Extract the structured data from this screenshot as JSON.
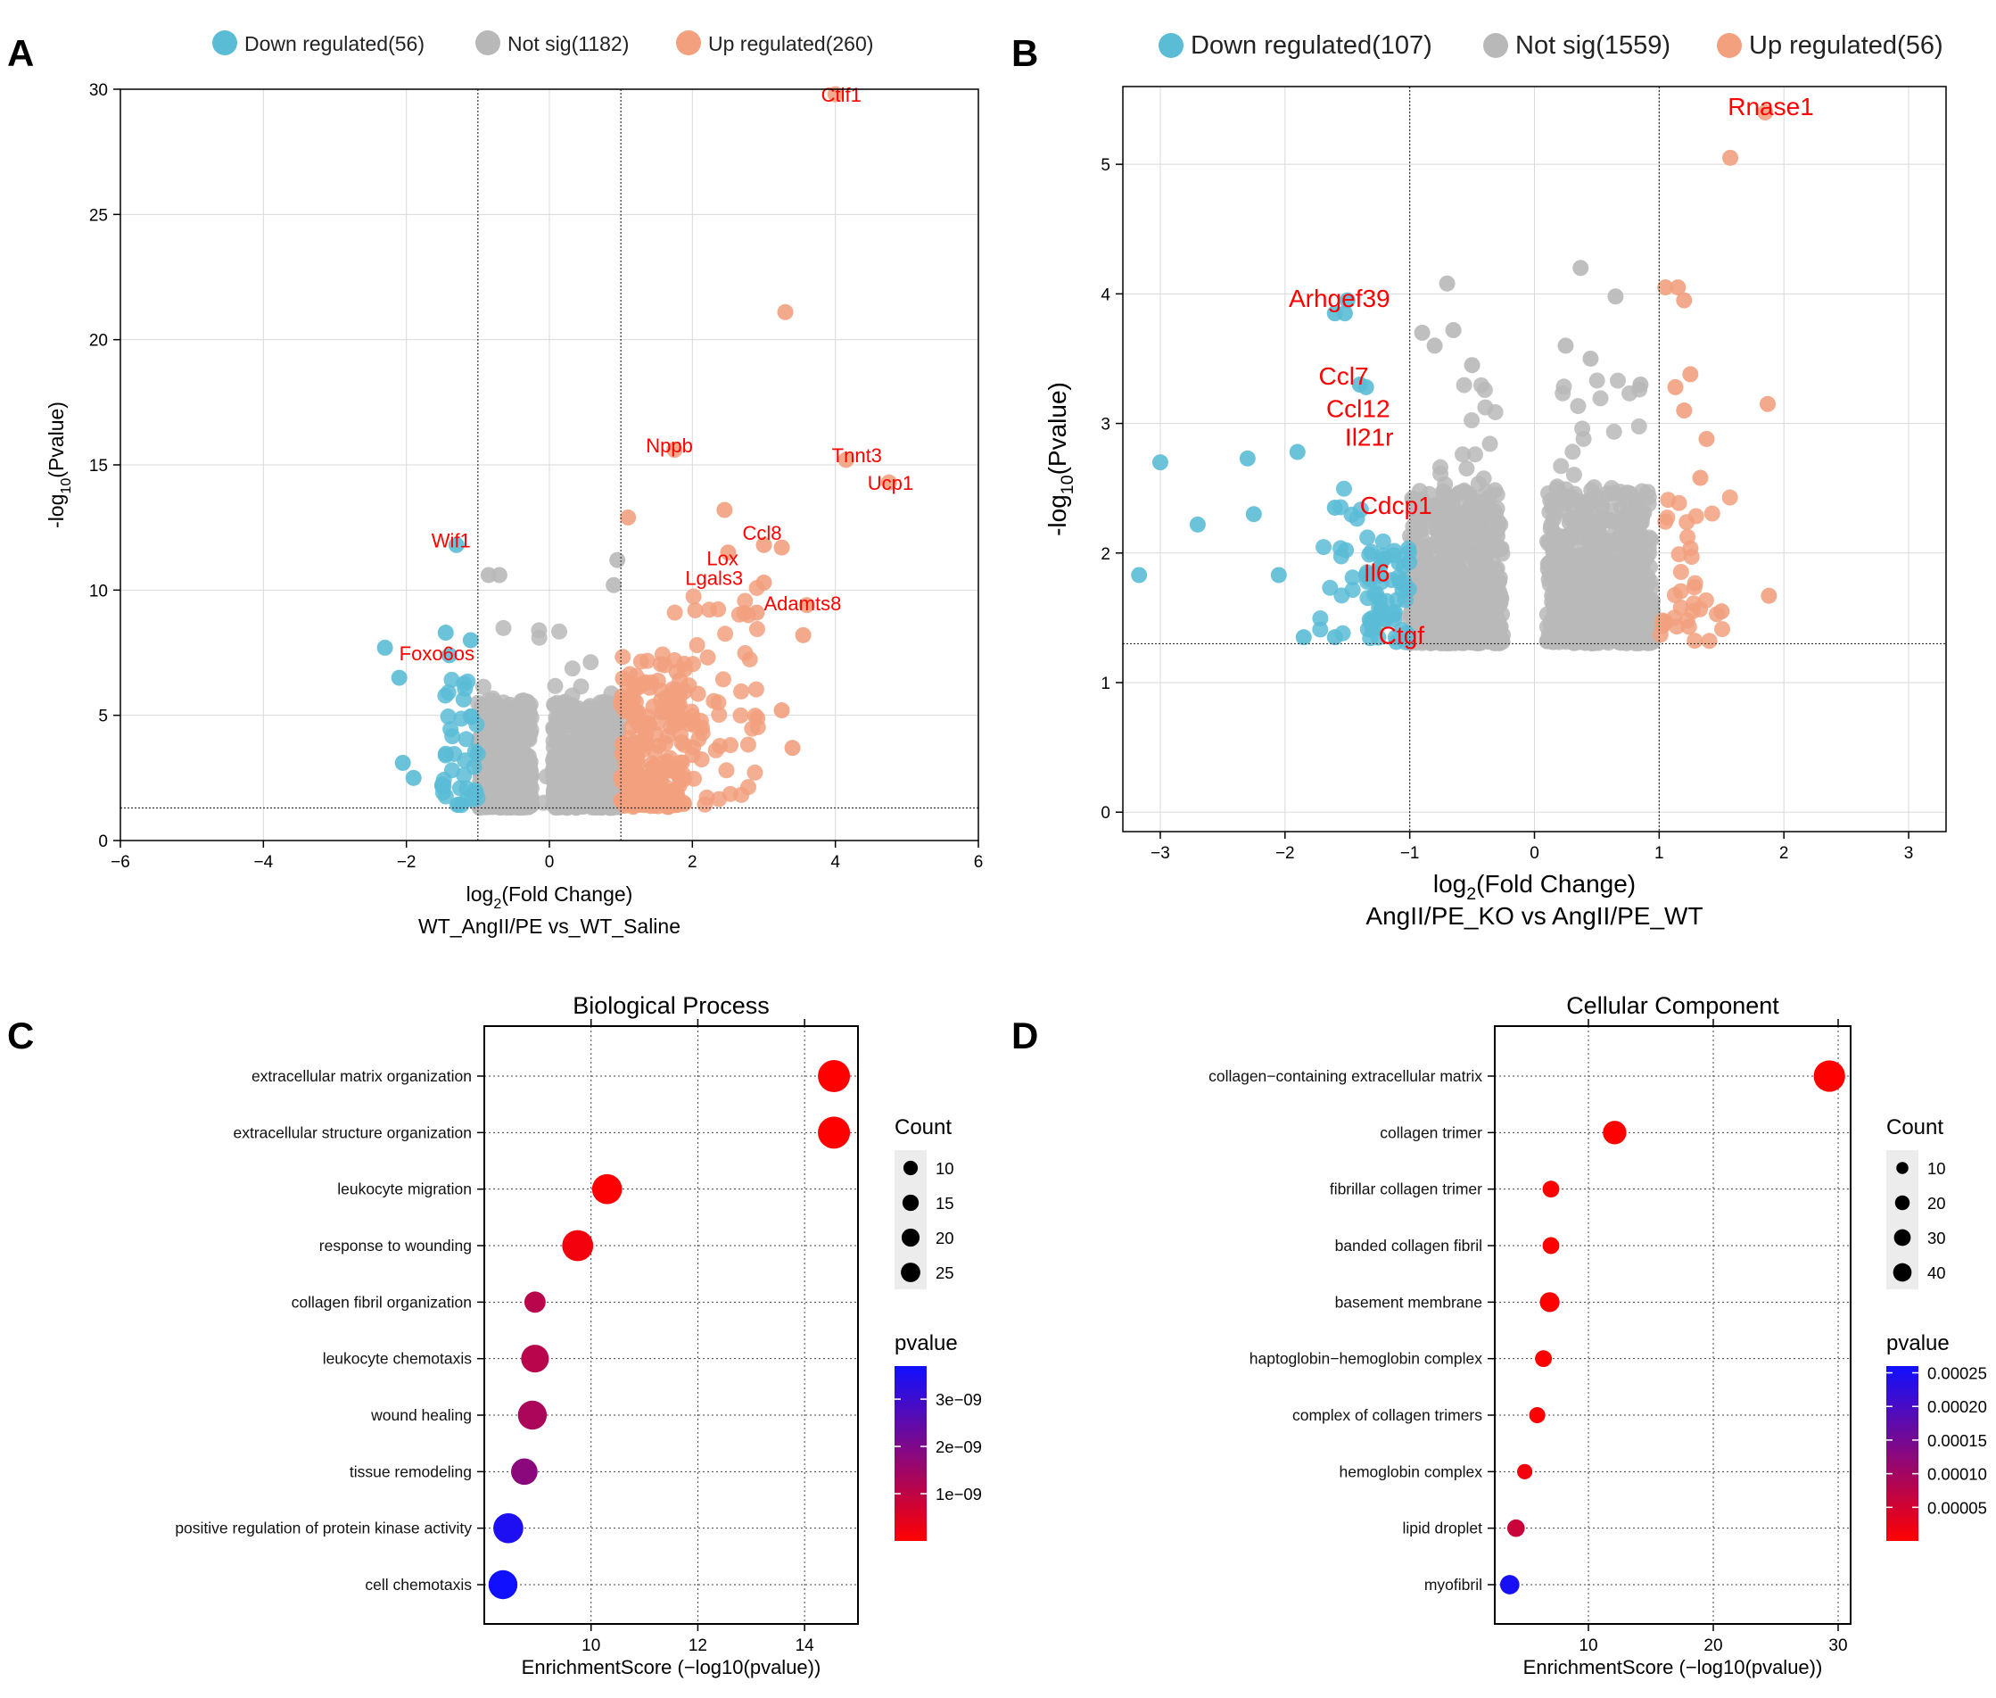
{
  "colors": {
    "down": "#5bbcd6",
    "notsig": "#b8b8b8",
    "up": "#f2a07e",
    "label": "#ff0000",
    "grid": "#d9d9d9",
    "pval_low": "#ff0000",
    "pval_high": "#1010ff"
  },
  "chart_data": [
    {
      "panel": "A",
      "type": "scatter",
      "subtype": "volcano",
      "legend": [
        {
          "key": "down",
          "label": "Down regulated(56)"
        },
        {
          "key": "notsig",
          "label": "Not sig(1182)"
        },
        {
          "key": "up",
          "label": "Up regulated(260)"
        }
      ],
      "xlabel_main": "log",
      "xlabel_sub": "2",
      "xlabel_rest": "(Fold Change)",
      "comparison": "WT_AngII/PE vs_WT_Saline",
      "ylabel_main": "-log",
      "ylabel_sub": "10",
      "ylabel_rest": "(Pvalue)",
      "xlim": [
        -6,
        6
      ],
      "ylim": [
        0,
        30
      ],
      "xticks": [
        -6,
        -4,
        -2,
        0,
        2,
        4,
        6
      ],
      "yticks": [
        0,
        5,
        10,
        15,
        20,
        25,
        30
      ],
      "fc_threshold": [
        -1,
        1
      ],
      "p_threshold": 1.3,
      "labels": [
        {
          "text": "Ctlf1",
          "x": 3.8,
          "y": 29.5
        },
        {
          "text": "Nppb",
          "x": 1.35,
          "y": 15.5
        },
        {
          "text": "Tnnt3",
          "x": 3.95,
          "y": 15.1
        },
        {
          "text": "Ucp1",
          "x": 4.45,
          "y": 14.0
        },
        {
          "text": "Ccl8",
          "x": 2.7,
          "y": 12.0
        },
        {
          "text": "Lox",
          "x": 2.2,
          "y": 11.0
        },
        {
          "text": "Lgals3",
          "x": 1.9,
          "y": 10.2
        },
        {
          "text": "Adamts8",
          "x": 3.0,
          "y": 9.2
        },
        {
          "text": "Wif1",
          "x": -1.65,
          "y": 11.7
        },
        {
          "text": "Foxo6os",
          "x": -2.1,
          "y": 7.2
        }
      ],
      "labelled_points": [
        {
          "x": 4.0,
          "y": 29.8,
          "g": "up"
        },
        {
          "x": 3.3,
          "y": 21.1,
          "g": "up"
        },
        {
          "x": 4.15,
          "y": 15.2,
          "g": "up"
        },
        {
          "x": 4.75,
          "y": 14.3,
          "g": "up"
        },
        {
          "x": 1.75,
          "y": 15.6,
          "g": "up"
        },
        {
          "x": 1.1,
          "y": 12.9,
          "g": "up"
        },
        {
          "x": 2.45,
          "y": 13.2,
          "g": "up"
        },
        {
          "x": 3.0,
          "y": 11.8,
          "g": "up"
        },
        {
          "x": 3.25,
          "y": 11.7,
          "g": "up"
        },
        {
          "x": 2.5,
          "y": 11.5,
          "g": "up"
        },
        {
          "x": 3.0,
          "y": 10.3,
          "g": "up"
        },
        {
          "x": 3.6,
          "y": 9.4,
          "g": "up"
        },
        {
          "x": 2.9,
          "y": 9.1,
          "g": "up"
        },
        {
          "x": 3.55,
          "y": 8.2,
          "g": "up"
        },
        {
          "x": 3.4,
          "y": 3.7,
          "g": "up"
        },
        {
          "x": 3.25,
          "y": 5.2,
          "g": "up"
        },
        {
          "x": -1.3,
          "y": 11.8,
          "g": "down"
        },
        {
          "x": -2.3,
          "y": 7.7,
          "g": "down"
        },
        {
          "x": -2.1,
          "y": 6.5,
          "g": "down"
        },
        {
          "x": -1.4,
          "y": 7.4,
          "g": "down"
        },
        {
          "x": -1.45,
          "y": 8.3,
          "g": "down"
        },
        {
          "x": -1.1,
          "y": 8.0,
          "g": "down"
        },
        {
          "x": -2.05,
          "y": 3.1,
          "g": "down"
        },
        {
          "x": -1.9,
          "y": 2.5,
          "g": "down"
        },
        {
          "x": -0.85,
          "y": 10.6,
          "g": "notsig"
        },
        {
          "x": -0.7,
          "y": 10.6,
          "g": "notsig"
        },
        {
          "x": 0.95,
          "y": 11.2,
          "g": "notsig"
        },
        {
          "x": 0.9,
          "y": 10.2,
          "g": "notsig"
        }
      ]
    },
    {
      "panel": "B",
      "type": "scatter",
      "subtype": "volcano",
      "legend": [
        {
          "key": "down",
          "label": "Down regulated(107)"
        },
        {
          "key": "notsig",
          "label": "Not sig(1559)"
        },
        {
          "key": "up",
          "label": "Up regulated(56)"
        }
      ],
      "xlabel_main": "log",
      "xlabel_sub": "2",
      "xlabel_rest": "(Fold Change)",
      "comparison": "AngII/PE_KO vs AngII/PE_WT",
      "ylabel_main": "-log",
      "ylabel_sub": "10",
      "ylabel_rest": "(Pvalue)",
      "xlim": [
        -3.3,
        3.3
      ],
      "ylim": [
        -0.15,
        5.6
      ],
      "xticks": [
        -3,
        -2,
        -1,
        0,
        1,
        2,
        3
      ],
      "yticks": [
        0,
        1,
        2,
        3,
        4,
        5
      ],
      "fc_threshold": [
        -1,
        1
      ],
      "p_threshold": 1.3,
      "labels": [
        {
          "text": "Rnase1",
          "x": 1.55,
          "y": 5.38
        },
        {
          "text": "Arhgef39",
          "x": -1.97,
          "y": 3.9
        },
        {
          "text": "Ccl7",
          "x": -1.73,
          "y": 3.3
        },
        {
          "text": "Ccl12",
          "x": -1.67,
          "y": 3.05
        },
        {
          "text": "Il21r",
          "x": -1.52,
          "y": 2.83
        },
        {
          "text": "Cdcp1",
          "x": -1.4,
          "y": 2.3
        },
        {
          "text": "Il6",
          "x": -1.37,
          "y": 1.78
        },
        {
          "text": "Ctgf",
          "x": -1.25,
          "y": 1.3
        }
      ],
      "labelled_points": [
        {
          "x": 1.85,
          "y": 5.4,
          "g": "up"
        },
        {
          "x": 1.57,
          "y": 5.05,
          "g": "up"
        },
        {
          "x": 1.87,
          "y": 3.15,
          "g": "up"
        },
        {
          "x": 1.88,
          "y": 1.67,
          "g": "up"
        },
        {
          "x": 1.05,
          "y": 4.05,
          "g": "up"
        },
        {
          "x": 1.15,
          "y": 4.05,
          "g": "up"
        },
        {
          "x": 1.2,
          "y": 3.95,
          "g": "up"
        },
        {
          "x": 1.25,
          "y": 3.38,
          "g": "up"
        },
        {
          "x": 1.13,
          "y": 3.28,
          "g": "up"
        },
        {
          "x": 1.38,
          "y": 2.88,
          "g": "up"
        },
        {
          "x": 1.33,
          "y": 2.58,
          "g": "up"
        },
        {
          "x": 1.5,
          "y": 1.55,
          "g": "up"
        },
        {
          "x": 1.2,
          "y": 3.1,
          "g": "up"
        },
        {
          "x": -3.17,
          "y": 1.83,
          "g": "down"
        },
        {
          "x": -3.0,
          "y": 2.7,
          "g": "down"
        },
        {
          "x": -2.7,
          "y": 2.22,
          "g": "down"
        },
        {
          "x": -2.3,
          "y": 2.73,
          "g": "down"
        },
        {
          "x": -2.25,
          "y": 2.3,
          "g": "down"
        },
        {
          "x": -2.05,
          "y": 1.83,
          "g": "down"
        },
        {
          "x": -1.9,
          "y": 2.78,
          "g": "down"
        },
        {
          "x": -1.6,
          "y": 3.85,
          "g": "down"
        },
        {
          "x": -1.52,
          "y": 3.85,
          "g": "down"
        },
        {
          "x": -1.5,
          "y": 3.95,
          "g": "down"
        },
        {
          "x": -1.4,
          "y": 3.3,
          "g": "down"
        },
        {
          "x": -1.35,
          "y": 3.28,
          "g": "down"
        },
        {
          "x": -1.6,
          "y": 2.35,
          "g": "down"
        },
        {
          "x": -1.85,
          "y": 1.35,
          "g": "down"
        },
        {
          "x": -1.6,
          "y": 1.35,
          "g": "down"
        },
        {
          "x": -0.7,
          "y": 4.08,
          "g": "notsig"
        },
        {
          "x": 0.37,
          "y": 4.2,
          "g": "notsig"
        },
        {
          "x": 0.65,
          "y": 3.98,
          "g": "notsig"
        },
        {
          "x": -0.9,
          "y": 3.7,
          "g": "notsig"
        },
        {
          "x": -0.65,
          "y": 3.72,
          "g": "notsig"
        },
        {
          "x": -0.8,
          "y": 3.6,
          "g": "notsig"
        },
        {
          "x": 0.25,
          "y": 3.6,
          "g": "notsig"
        },
        {
          "x": 0.45,
          "y": 3.5,
          "g": "notsig"
        },
        {
          "x": -0.5,
          "y": 3.45,
          "g": "notsig"
        },
        {
          "x": 0.85,
          "y": 3.3,
          "g": "notsig"
        }
      ]
    },
    {
      "panel": "C",
      "type": "scatter",
      "subtype": "dotplot",
      "title": "Biological Process",
      "xlabel": "EnrichmentScore (−log10(pvalue))",
      "xlim": [
        8.0,
        15.0
      ],
      "xticks": [
        10,
        12,
        14
      ],
      "terms": [
        "extracellular matrix organization",
        "extracellular structure organization",
        "leukocyte migration",
        "response to wounding",
        "collagen fibril organization",
        "leukocyte chemotaxis",
        "wound healing",
        "tissue remodeling",
        "positive regulation of protein kinase activity",
        "cell chemotaxis"
      ],
      "enrichment": [
        14.55,
        14.55,
        10.3,
        9.75,
        8.95,
        8.95,
        8.9,
        8.75,
        8.45,
        8.35
      ],
      "count": [
        25,
        25,
        21,
        23,
        8,
        17,
        19,
        15,
        21,
        19
      ],
      "pvalue": [
        2.8e-15,
        2.8e-15,
        5e-11,
        1.8e-10,
        1.1e-09,
        1.1e-09,
        1.3e-09,
        1.8e-09,
        3.5e-09,
        4.5e-09
      ],
      "pvalue_range": [
        0,
        3.7e-09
      ],
      "count_legend_title": "Count",
      "count_legend": [
        10,
        15,
        20,
        25
      ],
      "pvalue_legend_title": "pvalue",
      "pvalue_ticks": [
        {
          "v": 3e-09,
          "label": "3e−09"
        },
        {
          "v": 2e-09,
          "label": "2e−09"
        },
        {
          "v": 1e-09,
          "label": "1e−09"
        }
      ]
    },
    {
      "panel": "D",
      "type": "scatter",
      "subtype": "dotplot",
      "title": "Cellular Component",
      "xlabel": "EnrichmentScore (−log10(pvalue))",
      "xlim": [
        2.5,
        31.0
      ],
      "xticks": [
        10,
        20,
        30
      ],
      "terms": [
        "collagen−containing extracellular matrix",
        "collagen trimer",
        "fibrillar collagen trimer",
        "banded collagen fibril",
        "basement membrane",
        "haptoglobin−hemoglobin complex",
        "complex of collagen trimers",
        "hemoglobin complex",
        "lipid droplet",
        "myofibril"
      ],
      "enrichment": [
        29.3,
        12.1,
        7.0,
        7.0,
        6.9,
        6.4,
        5.9,
        4.9,
        4.2,
        3.7
      ],
      "count": [
        44,
        20,
        7,
        7,
        12,
        7,
        6,
        5,
        8,
        11
      ],
      "pvalue": [
        5e-30,
        8e-13,
        1e-07,
        1e-07,
        1.3e-07,
        4e-07,
        1.3e-06,
        1.3e-05,
        6e-05,
        0.00025
      ],
      "pvalue_range": [
        0,
        0.00026
      ],
      "count_legend_title": "Count",
      "count_legend": [
        10,
        20,
        30,
        40
      ],
      "pvalue_legend_title": "pvalue",
      "pvalue_ticks": [
        {
          "v": 0.00025,
          "label": "0.00025"
        },
        {
          "v": 0.0002,
          "label": "0.00020"
        },
        {
          "v": 0.00015,
          "label": "0.00015"
        },
        {
          "v": 0.0001,
          "label": "0.00010"
        },
        {
          "v": 5e-05,
          "label": "0.00005"
        }
      ]
    }
  ]
}
